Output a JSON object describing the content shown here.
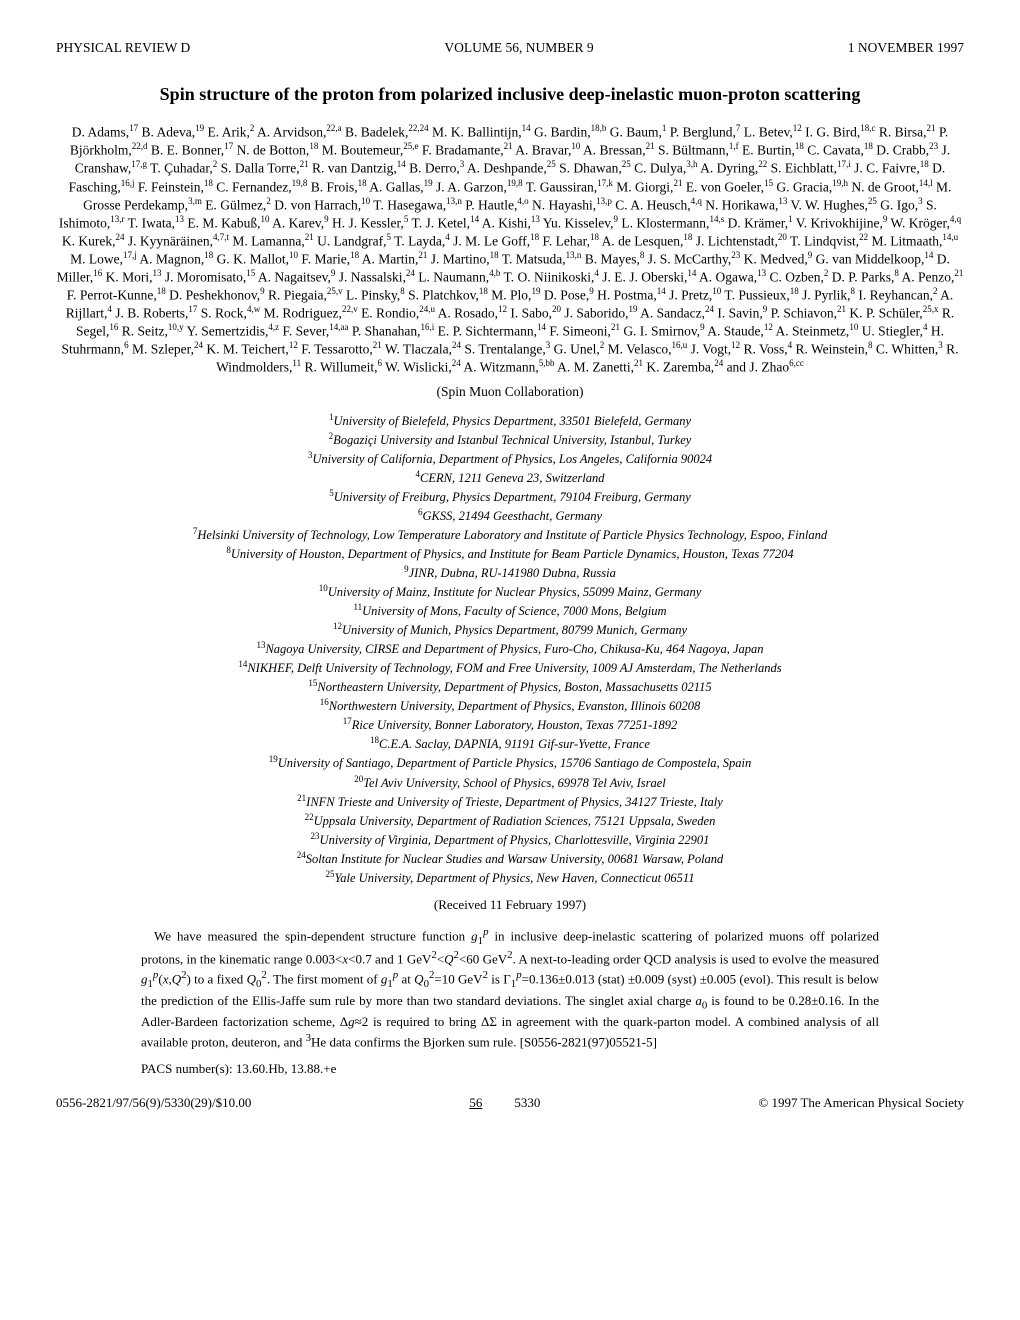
{
  "header": {
    "journal": "PHYSICAL REVIEW D",
    "volume": "VOLUME 56, NUMBER 9",
    "date": "1 NOVEMBER 1997"
  },
  "title": "Spin structure of the proton from polarized inclusive deep-inelastic muon-proton scattering",
  "authors_html": "D. Adams,<sup>17</sup> B. Adeva,<sup>19</sup> E. Arik,<sup>2</sup> A. Arvidson,<sup>22,a</sup> B. Badelek,<sup>22,24</sup> M. K. Ballintijn,<sup>14</sup> G. Bardin,<sup>18,b</sup> G. Baum,<sup>1</sup> P. Berglund,<sup>7</sup> L. Betev,<sup>12</sup> I. G. Bird,<sup>18,c</sup> R. Birsa,<sup>21</sup> P. Björkholm,<sup>22,d</sup> B. E. Bonner,<sup>17</sup> N. de Botton,<sup>18</sup> M. Boutemeur,<sup>25,e</sup> F. Bradamante,<sup>21</sup> A. Bravar,<sup>10</sup> A. Bressan,<sup>21</sup> S. Bültmann,<sup>1,f</sup> E. Burtin,<sup>18</sup> C. Cavata,<sup>18</sup> D. Crabb,<sup>23</sup> J. Cranshaw,<sup>17,g</sup> T. Çuhadar,<sup>2</sup> S. Dalla Torre,<sup>21</sup> R. van Dantzig,<sup>14</sup> B. Derro,<sup>3</sup> A. Deshpande,<sup>25</sup> S. Dhawan,<sup>25</sup> C. Dulya,<sup>3,h</sup> A. Dyring,<sup>22</sup> S. Eichblatt,<sup>17,i</sup> J. C. Faivre,<sup>18</sup> D. Fasching,<sup>16,j</sup> F. Feinstein,<sup>18</sup> C. Fernandez,<sup>19,8</sup> B. Frois,<sup>18</sup> A. Gallas,<sup>19</sup> J. A. Garzon,<sup>19,8</sup> T. Gaussiran,<sup>17,k</sup> M. Giorgi,<sup>21</sup> E. von Goeler,<sup>15</sup> G. Gracia,<sup>19,h</sup> N. de Groot,<sup>14,l</sup> M. Grosse Perdekamp,<sup>3,m</sup> E. Gülmez,<sup>2</sup> D. von Harrach,<sup>10</sup> T. Hasegawa,<sup>13,n</sup> P. Hautle,<sup>4,o</sup> N. Hayashi,<sup>13,p</sup> C. A. Heusch,<sup>4,q</sup> N. Horikawa,<sup>13</sup> V. W. Hughes,<sup>25</sup> G. Igo,<sup>3</sup> S. Ishimoto,<sup>13,r</sup> T. Iwata,<sup>13</sup> E. M. Kabuß,<sup>10</sup> A. Karev,<sup>9</sup> H. J. Kessler,<sup>5</sup> T. J. Ketel,<sup>14</sup> A. Kishi,<sup>13</sup> Yu. Kisselev,<sup>9</sup> L. Klostermann,<sup>14,s</sup> D. Krämer,<sup>1</sup> V. Krivokhijine,<sup>9</sup> W. Kröger,<sup>4,q</sup> K. Kurek,<sup>24</sup> J. Kyynäräinen,<sup>4,7,t</sup> M. Lamanna,<sup>21</sup> U. Landgraf,<sup>5</sup> T. Layda,<sup>4</sup> J. M. Le Goff,<sup>18</sup> F. Lehar,<sup>18</sup> A. de Lesquen,<sup>18</sup> J. Lichtenstadt,<sup>20</sup> T. Lindqvist,<sup>22</sup> M. Litmaath,<sup>14,u</sup> M. Lowe,<sup>17,j</sup> A. Magnon,<sup>18</sup> G. K. Mallot,<sup>10</sup> F. Marie,<sup>18</sup> A. Martin,<sup>21</sup> J. Martino,<sup>18</sup> T. Matsuda,<sup>13,n</sup> B. Mayes,<sup>8</sup> J. S. McCarthy,<sup>23</sup> K. Medved,<sup>9</sup> G. van Middelkoop,<sup>14</sup> D. Miller,<sup>16</sup> K. Mori,<sup>13</sup> J. Moromisato,<sup>15</sup> A. Nagaitsev,<sup>9</sup> J. Nassalski,<sup>24</sup> L. Naumann,<sup>4,b</sup> T. O. Niinikoski,<sup>4</sup> J. E. J. Oberski,<sup>14</sup> A. Ogawa,<sup>13</sup> C. Ozben,<sup>2</sup> D. P. Parks,<sup>8</sup> A. Penzo,<sup>21</sup> F. Perrot-Kunne,<sup>18</sup> D. Peshekhonov,<sup>9</sup> R. Piegaia,<sup>25,v</sup> L. Pinsky,<sup>8</sup> S. Platchkov,<sup>18</sup> M. Plo,<sup>19</sup> D. Pose,<sup>9</sup> H. Postma,<sup>14</sup> J. Pretz,<sup>10</sup> T. Pussieux,<sup>18</sup> J. Pyrlik,<sup>8</sup> I. Reyhancan,<sup>2</sup> A. Rijllart,<sup>4</sup> J. B. Roberts,<sup>17</sup> S. Rock,<sup>4,w</sup> M. Rodriguez,<sup>22,v</sup> E. Rondio,<sup>24,u</sup> A. Rosado,<sup>12</sup> I. Sabo,<sup>20</sup> J. Saborido,<sup>19</sup> A. Sandacz,<sup>24</sup> I. Savin,<sup>9</sup> P. Schiavon,<sup>21</sup> K. P. Schüler,<sup>25,x</sup> R. Segel,<sup>16</sup> R. Seitz,<sup>10,y</sup> Y. Semertzidis,<sup>4,z</sup> F. Sever,<sup>14,aa</sup> P. Shanahan,<sup>16,i</sup> E. P. Sichtermann,<sup>14</sup> F. Simeoni,<sup>21</sup> G. I. Smirnov,<sup>9</sup> A. Staude,<sup>12</sup> A. Steinmetz,<sup>10</sup> U. Stiegler,<sup>4</sup> H. Stuhrmann,<sup>6</sup> M. Szleper,<sup>24</sup> K. M. Teichert,<sup>12</sup> F. Tessarotto,<sup>21</sup> W. Tlaczala,<sup>24</sup> S. Trentalange,<sup>3</sup> G. Unel,<sup>2</sup> M. Velasco,<sup>16,u</sup> J. Vogt,<sup>12</sup> R. Voss,<sup>4</sup> R. Weinstein,<sup>8</sup> C. Whitten,<sup>3</sup> R. Windmolders,<sup>11</sup> R. Willumeit,<sup>6</sup> W. Wislicki,<sup>24</sup> A. Witzmann,<sup>5,bb</sup> A. M. Zanetti,<sup>21</sup> K. Zaremba,<sup>24</sup> and J. Zhao<sup>6,cc</sup>",
  "collab": "(Spin Muon Collaboration)",
  "affiliations": [
    {
      "n": "1",
      "text": "University of Bielefeld, Physics Department, 33501 Bielefeld, Germany"
    },
    {
      "n": "2",
      "text": "Bogaziçi University and Istanbul Technical University, Istanbul, Turkey"
    },
    {
      "n": "3",
      "text": "University of California, Department of Physics, Los Angeles, California 90024"
    },
    {
      "n": "4",
      "text": "CERN, 1211 Geneva 23, Switzerland"
    },
    {
      "n": "5",
      "text": "University of Freiburg, Physics Department, 79104 Freiburg, Germany"
    },
    {
      "n": "6",
      "text": "GKSS, 21494 Geesthacht, Germany"
    },
    {
      "n": "7",
      "text": "Helsinki University of Technology, Low Temperature Laboratory and Institute of Particle Physics Technology, Espoo, Finland"
    },
    {
      "n": "8",
      "text": "University of Houston, Department of Physics, and Institute for Beam Particle Dynamics, Houston, Texas 77204"
    },
    {
      "n": "9",
      "text": "JINR, Dubna, RU-141980 Dubna, Russia"
    },
    {
      "n": "10",
      "text": "University of Mainz, Institute for Nuclear Physics, 55099 Mainz, Germany"
    },
    {
      "n": "11",
      "text": "University of Mons, Faculty of Science, 7000 Mons, Belgium"
    },
    {
      "n": "12",
      "text": "University of Munich, Physics Department, 80799 Munich, Germany"
    },
    {
      "n": "13",
      "text": "Nagoya University, CIRSE and Department of Physics, Furo-Cho, Chikusa-Ku, 464 Nagoya, Japan"
    },
    {
      "n": "14",
      "text": "NIKHEF, Delft University of Technology, FOM and Free University, 1009 AJ Amsterdam, The Netherlands"
    },
    {
      "n": "15",
      "text": "Northeastern University, Department of Physics, Boston, Massachusetts 02115"
    },
    {
      "n": "16",
      "text": "Northwestern University, Department of Physics, Evanston, Illinois 60208"
    },
    {
      "n": "17",
      "text": "Rice University, Bonner Laboratory, Houston, Texas 77251-1892"
    },
    {
      "n": "18",
      "text": "C.E.A. Saclay, DAPNIA, 91191 Gif-sur-Yvette, France"
    },
    {
      "n": "19",
      "text": "University of Santiago, Department of Particle Physics, 15706 Santiago de Compostela, Spain"
    },
    {
      "n": "20",
      "text": "Tel Aviv University, School of Physics, 69978 Tel Aviv, Israel"
    },
    {
      "n": "21",
      "text": "INFN Trieste and University of Trieste, Department of Physics, 34127 Trieste, Italy"
    },
    {
      "n": "22",
      "text": "Uppsala University, Department of Radiation Sciences, 75121 Uppsala, Sweden"
    },
    {
      "n": "23",
      "text": "University of Virginia, Department of Physics, Charlottesville, Virginia 22901"
    },
    {
      "n": "24",
      "text": "Soltan Institute for Nuclear Studies and Warsaw University, 00681 Warsaw, Poland"
    },
    {
      "n": "25",
      "text": "Yale University, Department of Physics, New Haven, Connecticut 06511"
    }
  ],
  "received": "(Received 11 February 1997)",
  "abstract_html": "We have measured the spin-dependent structure function <i>g</i><sub>1</sub><sup><i>p</i></sup> in inclusive deep-inelastic scattering of polarized muons off polarized protons, in the kinematic range 0.003&lt;<i>x</i>&lt;0.7 and 1 GeV<sup>2</sup>&lt;<i>Q</i><sup>2</sup>&lt;60 GeV<sup>2</sup>. A next-to-leading order QCD analysis is used to evolve the measured <i>g</i><sub>1</sub><sup><i>p</i></sup>(<i>x</i>,<i>Q</i><sup>2</sup>) to a fixed <i>Q</i><sub>0</sub><sup>2</sup>. The first moment of <i>g</i><sub>1</sub><sup><i>p</i></sup> at <i>Q</i><sub>0</sub><sup>2</sup>=10 GeV<sup>2</sup> is &Gamma;<sub>1</sub><sup><i>p</i></sup>=0.136&plusmn;0.013 (stat) &plusmn;0.009 (syst) &plusmn;0.005 (evol). This result is below the prediction of the Ellis-Jaffe sum rule by more than two standard deviations. The singlet axial charge <i>a</i><sub>0</sub> is found to be 0.28&plusmn;0.16. In the Adler-Bardeen factorization scheme, &Delta;<i>g</i>&asymp;2 is required to bring &Delta;&Sigma; in agreement with the quark-parton model. A combined analysis of all available proton, deuteron, and <sup>3</sup>He data confirms the Bjorken sum rule. [S0556-2821(97)05521-5]",
  "pacs": "PACS number(s): 13.60.Hb, 13.88.+e",
  "footer": {
    "left": "0556-2821/97/56(9)/5330(29)/$10.00",
    "vol": "56",
    "page": "5330",
    "right": "© 1997 The American Physical Society"
  }
}
